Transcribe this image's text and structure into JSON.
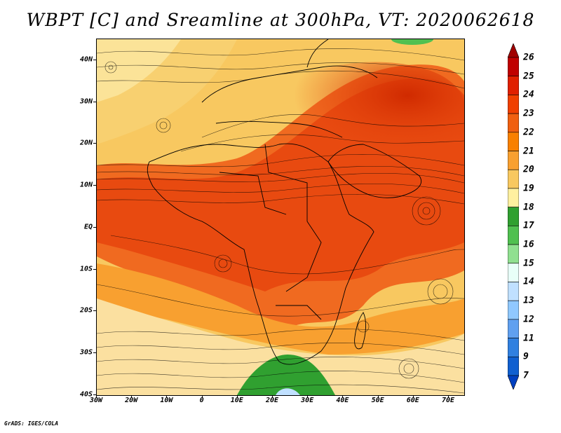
{
  "title": "WBPT [C] and Sreamline at 300hPa, VT: 2020062618",
  "credit": "GrADS: IGES/COLA",
  "lat_labels": [
    "40N",
    "30N",
    "20N",
    "10N",
    "EQ",
    "10S",
    "20S",
    "30S",
    "40S"
  ],
  "lon_labels": [
    "30W",
    "20W",
    "10W",
    "0",
    "10E",
    "20E",
    "30E",
    "40E",
    "50E",
    "60E",
    "70E"
  ],
  "colorbar": {
    "levels": [
      "26",
      "25",
      "24",
      "23",
      "22",
      "21",
      "20",
      "19",
      "18",
      "17",
      "16",
      "15",
      "14",
      "13",
      "12",
      "11",
      "9",
      "7"
    ],
    "colors": [
      "#a00000",
      "#c00000",
      "#e02000",
      "#f04000",
      "#f06010",
      "#f88000",
      "#f8a030",
      "#f8c860",
      "#fff0a0",
      "#30a030",
      "#50c050",
      "#90e090",
      "#e8fff8",
      "#c0e0ff",
      "#90c8ff",
      "#60a0f0",
      "#3080e0",
      "#1060d0",
      "#0040c0"
    ]
  }
}
